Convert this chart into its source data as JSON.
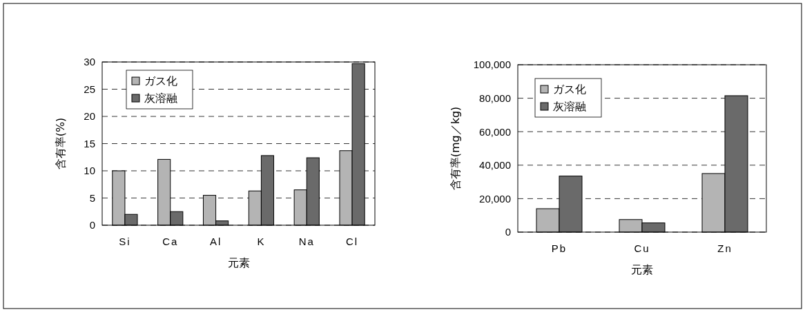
{
  "chart_data": [
    {
      "type": "bar",
      "xlabel": "元素",
      "ylabel": "含有率(%)",
      "categories": [
        "Si",
        "Ca",
        "Al",
        "K",
        "Na",
        "Cl"
      ],
      "series": [
        {
          "name": "ガス化",
          "color": "#b4b4b4",
          "values": [
            10,
            12.1,
            5.5,
            6.3,
            6.5,
            13.7
          ]
        },
        {
          "name": "灰溶融",
          "color": "#6a6a6a",
          "values": [
            2,
            2.5,
            0.8,
            12.8,
            12.4,
            29.7
          ]
        }
      ],
      "ylim": [
        0,
        30
      ],
      "yticks": [
        0,
        5,
        10,
        15,
        20,
        25,
        30
      ],
      "grid": "y",
      "legend": "top left"
    },
    {
      "type": "bar",
      "xlabel": "元素",
      "ylabel": "含有率(mg／kg)",
      "categories": [
        "Pb",
        "Cu",
        "Zn"
      ],
      "series": [
        {
          "name": "ガス化",
          "color": "#b4b4b4",
          "values": [
            14000,
            7500,
            35000
          ]
        },
        {
          "name": "灰溶融",
          "color": "#6a6a6a",
          "values": [
            33500,
            5500,
            81500
          ]
        }
      ],
      "ylim": [
        0,
        100000
      ],
      "yticks": [
        {
          "value": 0,
          "label": "0"
        },
        {
          "value": 20000,
          "label": "20,000"
        },
        {
          "value": 40000,
          "label": "40,000"
        },
        {
          "value": 60000,
          "label": "60,000"
        },
        {
          "value": 80000,
          "label": "80,000"
        },
        {
          "value": 100000,
          "label": "100,000"
        }
      ],
      "grid": "y",
      "legend": "top left"
    }
  ]
}
